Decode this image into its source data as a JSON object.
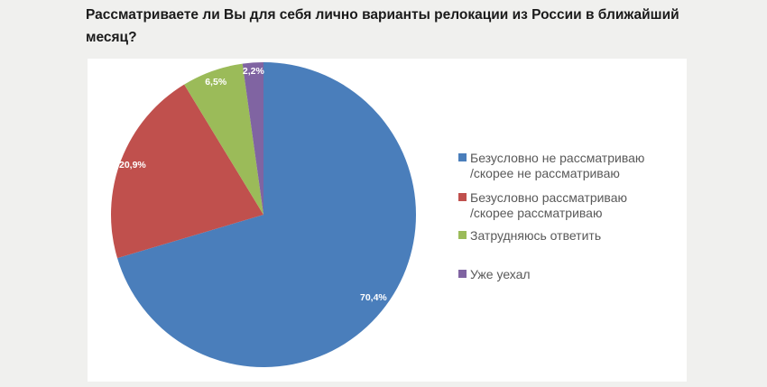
{
  "header": {
    "title_lines": [
      "Рассматриваете ли Вы для себя лично варианты релокации из России в ближайший",
      "месяц?"
    ]
  },
  "chart_data": {
    "type": "pie",
    "title": "Рассматриваете ли Вы для себя лично варианты релокации из России в ближайший месяц?",
    "categories": [
      "Безусловно не рассматриваю /скорее не рассматриваю",
      "Безусловно рассматриваю /скорее рассматриваю",
      "Затрудняюсь ответить",
      "Уже уехал"
    ],
    "values": [
      70.4,
      20.9,
      6.5,
      2.2
    ],
    "value_labels": [
      "70,4%",
      "20,9%",
      "6,5%",
      "2,2%"
    ],
    "colors": [
      "#4a7ebb",
      "#c0504d",
      "#9bbb59",
      "#8064a2"
    ],
    "start_angle_deg": 0,
    "direction": "clockwise",
    "legend_position": "right",
    "legend": [
      {
        "lines": [
          "Безусловно не рассматриваю",
          "/скорее не рассматриваю"
        ]
      },
      {
        "lines": [
          "Безусловно рассматриваю",
          "/скорее рассматриваю"
        ]
      },
      {
        "lines": [
          "Затрудняюсь ответить"
        ]
      },
      {
        "lines": [
          "Уже уехал"
        ]
      }
    ]
  }
}
